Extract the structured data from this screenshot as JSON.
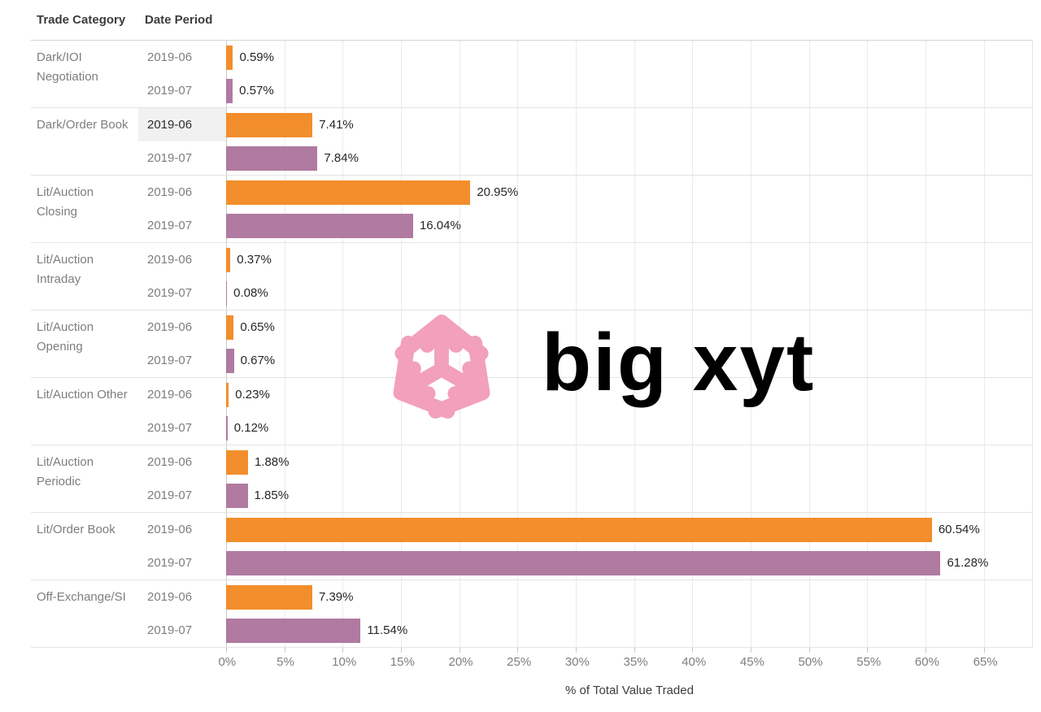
{
  "header": {
    "category_col": "Trade Category",
    "period_col": "Date Period"
  },
  "watermark": {
    "brand": "big xyt",
    "color": "#f2a0bc"
  },
  "selection": {
    "category_index": 1,
    "series_index": 0,
    "note": "Dark/Order Book 2019-06 cell highlighted"
  },
  "colors": {
    "series_2019_06": "#f28e2b",
    "series_2019_07": "#b07aa1",
    "grid": "#ebebeb",
    "zero_axis": "#c9c9c9",
    "row_border": "#e4e4e4",
    "label_gray": "#7e7e7e",
    "text_dark": "#3c3c3c",
    "highlight_bg": "#f1f1f1"
  },
  "chart_data": {
    "type": "bar",
    "orientation": "horizontal",
    "title": "",
    "xlabel": "% of Total Value Traded",
    "ylabel": "Trade Category / Date Period",
    "categories": [
      "Dark/IOI Negotiation",
      "Dark/Order Book",
      "Lit/Auction Closing",
      "Lit/Auction Intraday",
      "Lit/Auction Opening",
      "Lit/Auction Other",
      "Lit/Auction Periodic",
      "Lit/Order Book",
      "Off-Exchange/SI"
    ],
    "series": [
      {
        "name": "2019-06",
        "color": "#f28e2b",
        "values": [
          0.59,
          7.41,
          20.95,
          0.37,
          0.65,
          0.23,
          1.88,
          60.54,
          7.39
        ],
        "value_labels": [
          "0.59%",
          "7.41%",
          "20.95%",
          "0.37%",
          "0.65%",
          "0.23%",
          "1.88%",
          "60.54%",
          "7.39%"
        ]
      },
      {
        "name": "2019-07",
        "color": "#b07aa1",
        "values": [
          0.57,
          7.84,
          16.04,
          0.08,
          0.67,
          0.12,
          1.85,
          61.28,
          11.54
        ],
        "value_labels": [
          "0.57%",
          "7.84%",
          "16.04%",
          "0.08%",
          "0.67%",
          "0.12%",
          "1.85%",
          "61.28%",
          "11.54%"
        ]
      }
    ],
    "x_ticks": [
      0,
      5,
      10,
      15,
      20,
      25,
      30,
      35,
      40,
      45,
      50,
      55,
      60,
      65
    ],
    "x_tick_labels": [
      "0%",
      "5%",
      "10%",
      "15%",
      "20%",
      "25%",
      "30%",
      "35%",
      "40%",
      "45%",
      "50%",
      "55%",
      "60%",
      "65%"
    ],
    "x_axis_max": 69.2,
    "grid": true,
    "legend": "none"
  }
}
